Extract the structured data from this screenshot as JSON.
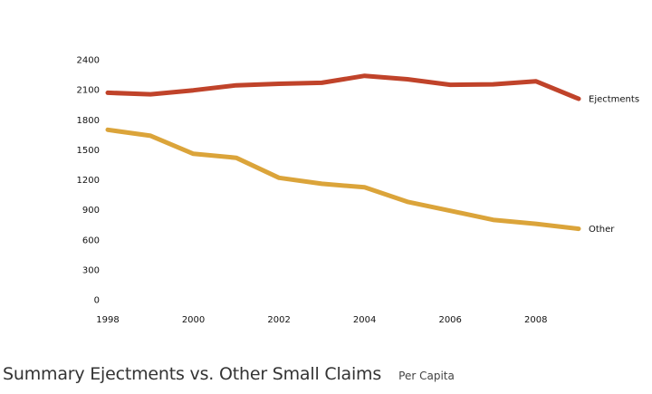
{
  "chart_data": {
    "type": "line",
    "title": "Summary Ejectments vs. Other Small Claims",
    "subtitle": "Per Capita",
    "xlabel": "",
    "ylabel": "",
    "x": [
      1998,
      1999,
      2000,
      2001,
      2002,
      2003,
      2004,
      2005,
      2006,
      2007,
      2008,
      2009
    ],
    "x_ticks": [
      1998,
      2000,
      2002,
      2004,
      2006,
      2008
    ],
    "y_ticks": [
      0,
      300,
      600,
      900,
      1200,
      1500,
      1800,
      2100,
      2400
    ],
    "xlim": [
      1998,
      2009
    ],
    "ylim": [
      0,
      2400
    ],
    "grid": false,
    "legend": "end-of-line labels",
    "series": [
      {
        "name": "Ejectments",
        "color": "#c0432a",
        "values": [
          2070,
          2055,
          2095,
          2145,
          2160,
          2170,
          2240,
          2205,
          2150,
          2155,
          2185,
          2010
        ]
      },
      {
        "name": "Other",
        "color": "#dba43a",
        "values": [
          1700,
          1640,
          1460,
          1420,
          1220,
          1160,
          1125,
          980,
          890,
          800,
          760,
          710
        ]
      }
    ]
  }
}
